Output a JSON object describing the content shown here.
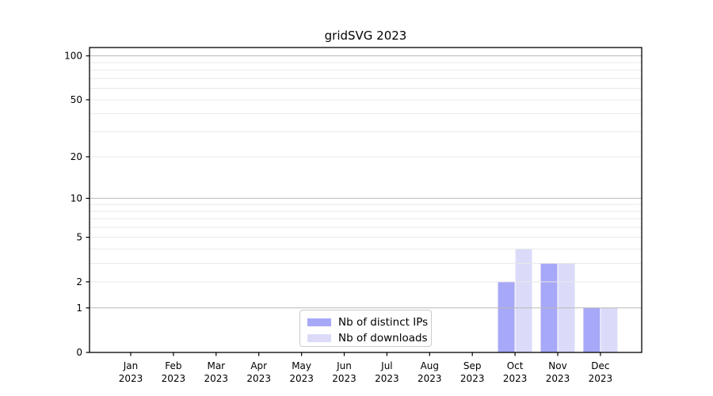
{
  "title": "gridSVG 2023",
  "chart_data": {
    "type": "bar",
    "title": "gridSVG 2023",
    "categories": [
      "Jan",
      "Feb",
      "Mar",
      "Apr",
      "May",
      "Jun",
      "Jul",
      "Aug",
      "Sep",
      "Oct",
      "Nov",
      "Dec"
    ],
    "category_year": "2023",
    "series": [
      {
        "name": "Nb of distinct IPs",
        "color": "#a8a8f8",
        "values": [
          0,
          0,
          0,
          0,
          0,
          0,
          0,
          0,
          0,
          2,
          3,
          1
        ]
      },
      {
        "name": "Nb of downloads",
        "color": "#dbdbf9",
        "values": [
          0,
          0,
          0,
          0,
          0,
          0,
          0,
          0,
          0,
          4,
          3,
          1
        ]
      }
    ],
    "xlabel": "",
    "ylabel": "",
    "y_scale": "log1p",
    "y_ticks": [
      0,
      1,
      2,
      5,
      10,
      20,
      50,
      100
    ],
    "y_major_gridlines": [
      1,
      10,
      100
    ],
    "y_minor_gridlines": [
      2,
      3,
      4,
      5,
      6,
      7,
      8,
      9,
      20,
      30,
      40,
      50,
      60,
      70,
      80,
      90
    ],
    "ylim": [
      0,
      114
    ],
    "grid": true,
    "grid_above_bars": true,
    "legend_position": "lower center"
  },
  "colors": {
    "background": "#ffffff",
    "frame": "#000000",
    "text": "#000000",
    "grid_major": "#b9b9b9",
    "grid_minor": "#e8e8e8",
    "legend_border": "#cccccc"
  }
}
